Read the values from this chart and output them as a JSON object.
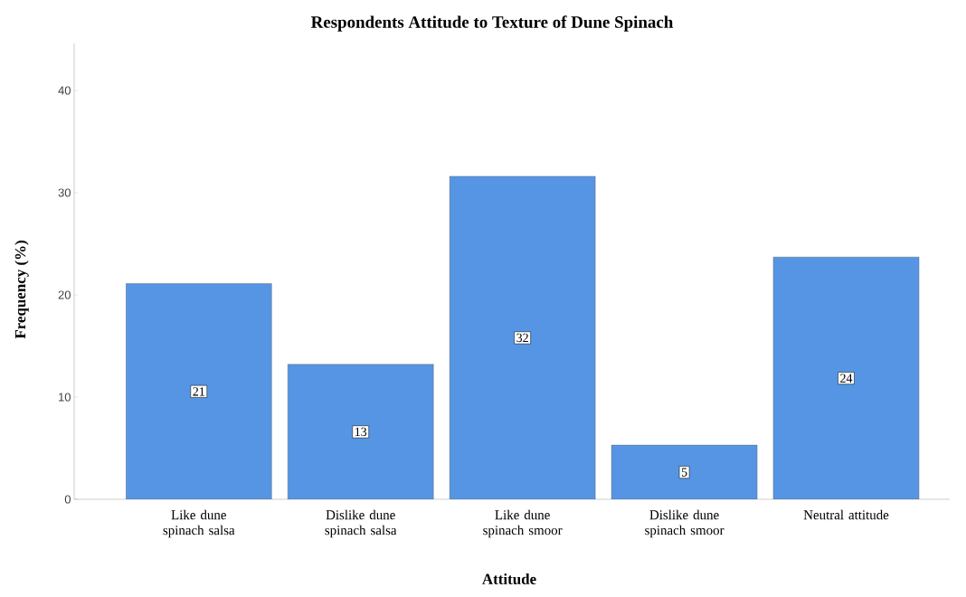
{
  "chart_data": {
    "type": "bar",
    "title": "Respondents Attitude to Texture of  Dune Spinach",
    "xlabel": "Attitude",
    "ylabel": "Frequency (%)",
    "categories": [
      "Like dune spinach salsa",
      "Dislike dune spinach salsa",
      "Like dune spinach smoor",
      "Dislike dune spinach smoor",
      "Neutral attitude"
    ],
    "values": [
      21.1,
      13.2,
      31.6,
      5.3,
      23.7
    ],
    "value_labels": [
      "21",
      "13",
      "32",
      "5",
      "24"
    ],
    "color": "#5595e3",
    "ylim": [
      0,
      44.6
    ],
    "yticks": [
      0,
      10,
      20,
      30,
      40
    ],
    "grid": false
  }
}
